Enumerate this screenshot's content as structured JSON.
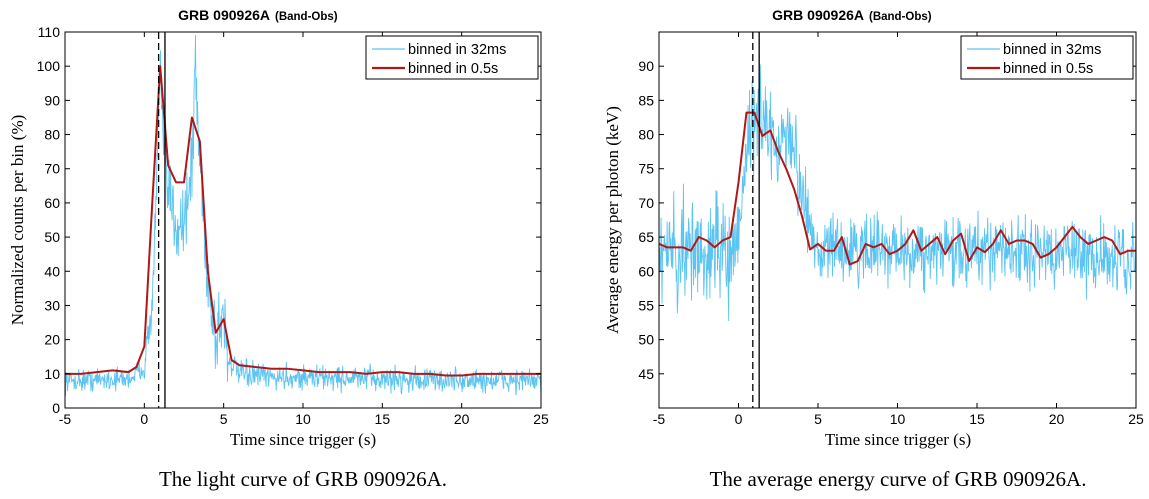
{
  "colors": {
    "fine": "#5bc4f2",
    "coarse": "#b01818",
    "axis": "#000000"
  },
  "chart_data": [
    {
      "type": "line",
      "title": "GRB 090926A",
      "subtitle": "(Band-Obs)",
      "xlabel": "Time since trigger (s)",
      "ylabel": "Normalized counts per bin (%)",
      "xlim": [
        -5,
        25
      ],
      "ylim": [
        0,
        110
      ],
      "xticks": [
        "-5",
        "0",
        "5",
        "10",
        "15",
        "20",
        "25"
      ],
      "yticks": [
        "0",
        "10",
        "20",
        "30",
        "40",
        "50",
        "60",
        "70",
        "80",
        "90",
        "100",
        "110"
      ],
      "grid": false,
      "legend_position": "top-right",
      "vlines": [
        {
          "x": 0.9,
          "style": "dashed"
        },
        {
          "x": 1.3,
          "style": "solid"
        }
      ],
      "caption": "The light curve of GRB 090926A.",
      "series": [
        {
          "name": "binned in 32ms",
          "sampling": "0.032 s bins, noisy",
          "envelope": {
            "x": [
              -5,
              -1,
              0,
              0.5,
              0.8,
              1.0,
              1.2,
              1.6,
              2.0,
              2.5,
              3.0,
              3.2,
              3.5,
              4.0,
              4.5,
              4.8,
              5.0,
              5.3,
              6,
              8,
              10,
              15,
              20,
              25
            ],
            "y": [
              8,
              8.5,
              12,
              30,
              70,
              100,
              75,
              60,
              55,
              55,
              70,
              100,
              72,
              38,
              20,
              25,
              28,
              14,
              10,
              9,
              9,
              8.5,
              8,
              8
            ]
          },
          "noise_amplitude": [
            -5,
            1.6,
            0,
            3,
            1,
            6,
            3,
            6,
            5.3,
            1.8,
            25,
            1.5
          ]
        },
        {
          "name": "binned in 0.5s",
          "x": [
            -5,
            -4,
            -3,
            -2,
            -1,
            -0.5,
            0,
            0.5,
            1.0,
            1.5,
            2.0,
            2.5,
            3.0,
            3.5,
            4.0,
            4.5,
            5.0,
            5.5,
            6,
            7,
            8,
            9,
            10,
            11,
            12,
            13,
            14,
            15,
            16,
            17,
            18,
            19,
            20,
            21,
            22,
            23,
            24,
            25
          ],
          "y": [
            10,
            10,
            10.5,
            11,
            10.5,
            12,
            18,
            60,
            100,
            71,
            66,
            66,
            85,
            78,
            40,
            22,
            26,
            14,
            12.5,
            12,
            11.5,
            11.5,
            11,
            10.5,
            10.5,
            10.5,
            10,
            10.5,
            10.5,
            10,
            10,
            9.5,
            9.5,
            10,
            10,
            10,
            10,
            10
          ]
        }
      ]
    },
    {
      "type": "line",
      "title": "GRB 090926A",
      "subtitle": "(Band-Obs)",
      "xlabel": "Time since trigger (s)",
      "ylabel": "Average energy per photon (keV)",
      "xlim": [
        -5,
        25
      ],
      "ylim": [
        40,
        95
      ],
      "xticks": [
        "-5",
        "0",
        "5",
        "10",
        "15",
        "20",
        "25"
      ],
      "yticks": [
        "45",
        "50",
        "55",
        "60",
        "65",
        "70",
        "75",
        "80",
        "85",
        "90"
      ],
      "grid": false,
      "legend_position": "top-right",
      "vlines": [
        {
          "x": 0.9,
          "style": "dashed"
        },
        {
          "x": 1.3,
          "style": "solid"
        }
      ],
      "caption": "The average energy curve of GRB 090926A.",
      "series": [
        {
          "name": "binned in 32ms",
          "sampling": "0.032 s bins, noisy",
          "envelope": {
            "x": [
              -5,
              -1,
              0,
              0.5,
              1.0,
              1.5,
              2.0,
              2.5,
              3.0,
              3.5,
              4.0,
              4.5,
              5,
              10,
              15,
              20,
              25
            ],
            "y": [
              63,
              63,
              64,
              78,
              84,
              82,
              79,
              78,
              80,
              78,
              72,
              66,
              63,
              63,
              63,
              63,
              62
            ]
          },
          "noise_amplitude": [
            -5,
            4,
            0,
            4,
            1,
            3,
            4.5,
            2.5,
            25,
            3.2
          ]
        },
        {
          "name": "binned in 0.5s",
          "x": [
            -5,
            -4.5,
            -4,
            -3.5,
            -3,
            -2.5,
            -2,
            -1.5,
            -1,
            -0.5,
            0,
            0.5,
            1.0,
            1.5,
            2.0,
            2.5,
            3.0,
            3.5,
            4.0,
            4.5,
            5.0,
            5.5,
            6.0,
            6.5,
            7.0,
            7.5,
            8.0,
            8.5,
            9.0,
            9.5,
            10.0,
            10.5,
            11.0,
            11.5,
            12.0,
            12.5,
            13.0,
            13.5,
            14.0,
            14.5,
            15.0,
            15.5,
            16.0,
            16.5,
            17.0,
            17.5,
            18.0,
            18.5,
            19.0,
            19.5,
            20.0,
            20.5,
            21.0,
            21.5,
            22.0,
            22.5,
            23.0,
            23.5,
            24.0,
            24.5,
            25.0
          ],
          "y": [
            64,
            63.5,
            63.5,
            63.5,
            63,
            65,
            64.5,
            63.5,
            64.5,
            65,
            73,
            83.2,
            83.2,
            79.8,
            80.6,
            77.5,
            75,
            72,
            68,
            63.2,
            64,
            63,
            63,
            65,
            61,
            61.5,
            64,
            63.5,
            64,
            62.5,
            63,
            64,
            66,
            63,
            64,
            65,
            62.5,
            64.5,
            65.5,
            61.5,
            63.5,
            62.8,
            64,
            66,
            64,
            64.5,
            64.5,
            64,
            62,
            62.5,
            63.5,
            65,
            66.5,
            65,
            64,
            64.5,
            65,
            64.5,
            62.5,
            63,
            63
          ]
        }
      ]
    }
  ]
}
